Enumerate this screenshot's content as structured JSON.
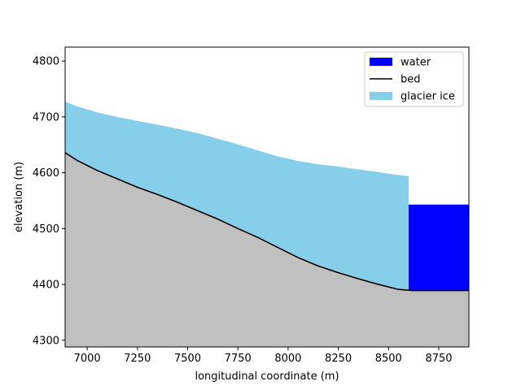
{
  "chart_data": {
    "type": "area",
    "xlabel": "longitudinal coordinate (m)",
    "ylabel": "elevation (m)",
    "xlim": [
      6890,
      8900
    ],
    "ylim": [
      4288,
      4825
    ],
    "x_ticks": [
      7000,
      7250,
      7500,
      7750,
      8000,
      8250,
      8500,
      8750
    ],
    "y_ticks": [
      4300,
      4400,
      4500,
      4600,
      4700,
      4800
    ],
    "legend_position": "top-right",
    "series": [
      {
        "name": "water",
        "kind": "filled-rect",
        "color": "#0000ff",
        "x_range": [
          8600,
          8900
        ],
        "y_range": [
          4389,
          4543
        ]
      },
      {
        "name": "bed",
        "kind": "line",
        "color": "#000000",
        "x": [
          6890,
          6950,
          7050,
          7150,
          7250,
          7350,
          7450,
          7550,
          7650,
          7750,
          7850,
          7950,
          8050,
          8150,
          8250,
          8350,
          8450,
          8550,
          8620,
          8900
        ],
        "y": [
          4636,
          4622,
          4604,
          4589,
          4574,
          4561,
          4547,
          4532,
          4517,
          4500,
          4484,
          4466,
          4448,
          4433,
          4421,
          4410,
          4400,
          4391,
          4389,
          4389
        ]
      },
      {
        "name": "glacier ice",
        "kind": "filled-area",
        "color": "#87ceeb",
        "x": [
          6890,
          6950,
          7050,
          7150,
          7250,
          7350,
          7450,
          7550,
          7650,
          7750,
          7850,
          7950,
          8050,
          8150,
          8250,
          8350,
          8450,
          8550,
          8600
        ],
        "y": [
          4727,
          4719,
          4708,
          4700,
          4693,
          4686,
          4679,
          4671,
          4661,
          4651,
          4640,
          4629,
          4621,
          4615,
          4611,
          4606,
          4601,
          4596,
          4594
        ]
      }
    ],
    "background_fill": {
      "color": "#c0c0c0"
    },
    "legend": [
      {
        "label": "water",
        "symbol": "patch",
        "color": "#0000ff"
      },
      {
        "label": "bed",
        "symbol": "line",
        "color": "#000000"
      },
      {
        "label": "glacier ice",
        "symbol": "patch",
        "color": "#87ceeb"
      }
    ]
  }
}
